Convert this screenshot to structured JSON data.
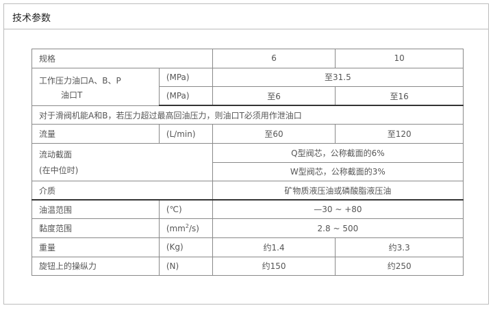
{
  "header": {
    "title": "技术参数"
  },
  "table": {
    "spec": {
      "label": "规格",
      "col6": "6",
      "col10": "10"
    },
    "pressure": {
      "label_line1": "工作压力油口A、B、P",
      "label_line2": "油口T",
      "unit1": "(MPa)",
      "value1": "至31.5",
      "unit2": "(MPa)",
      "t_col6": "至6",
      "t_col10": "至16"
    },
    "note": "对于滑阀机能A和B，若压力超过最高回油压力，则油口T必须用作泄油口",
    "flow": {
      "label": "流量",
      "unit": "(L/min)",
      "col6": "至60",
      "col10": "至120"
    },
    "section": {
      "label_line1": "流动截面",
      "label_line2": "(在中位时)",
      "value1": "Q型阀芯，公称截面的6%",
      "value2": "W型阀芯，公称截面的3%"
    },
    "medium": {
      "label": "介质",
      "value": "矿物质液压油或磷酸脂液压油"
    },
    "oil_temp": {
      "label": "油温范围",
      "unit": "(℃)",
      "value": "—30 ~ +80"
    },
    "viscosity": {
      "label": "黏度范围",
      "unit_pre": "(mm",
      "unit_sup": "2",
      "unit_post": "/s)",
      "value": "2.8 ~ 500"
    },
    "weight": {
      "label": "重量",
      "unit": "(Kg)",
      "col6": "约1.4",
      "col10": "约3.3"
    },
    "force": {
      "label": "旋钮上的操纵力",
      "unit": "(N)",
      "col6": "约150",
      "col10": "约250"
    }
  }
}
